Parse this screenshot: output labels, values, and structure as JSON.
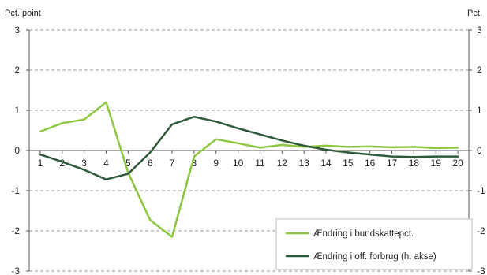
{
  "chart_data": {
    "type": "line",
    "y_unit_left": "Pct. point",
    "y_unit_right": "Pct.",
    "ylim_left": [
      -3,
      3
    ],
    "ylim_right": [
      -3,
      3
    ],
    "y_ticks": [
      "3",
      "2",
      "1",
      "0",
      "-1",
      "-2",
      "-3"
    ],
    "x_ticks": [
      "1",
      "2",
      "3",
      "4",
      "5",
      "6",
      "7",
      "8",
      "9",
      "10",
      "11",
      "12",
      "13",
      "14",
      "15",
      "16",
      "17",
      "18",
      "19",
      "20"
    ],
    "x": [
      1,
      2,
      3,
      4,
      5,
      6,
      7,
      8,
      9,
      10,
      11,
      12,
      13,
      14,
      15,
      16,
      17,
      18,
      19,
      20
    ],
    "grid": "dashed horizontal",
    "legend_position": "bottom-right",
    "series": [
      {
        "name": "Ændring i bundskattepct.",
        "axis": "left",
        "color": "#8dc63f",
        "values": [
          0.47,
          0.68,
          0.77,
          1.2,
          -0.55,
          -1.73,
          -2.15,
          -0.15,
          0.28,
          0.18,
          0.07,
          0.14,
          0.09,
          0.12,
          0.09,
          0.1,
          0.08,
          0.09,
          0.06,
          0.07
        ]
      },
      {
        "name": "Ændring i off. forbrug (h. akse)",
        "axis": "right",
        "color": "#2e5a3a",
        "values": [
          -0.1,
          -0.28,
          -0.48,
          -0.72,
          -0.58,
          -0.05,
          0.65,
          0.84,
          0.72,
          0.55,
          0.4,
          0.25,
          0.12,
          0.02,
          -0.05,
          -0.1,
          -0.15,
          -0.16,
          -0.15,
          -0.15
        ]
      }
    ]
  }
}
